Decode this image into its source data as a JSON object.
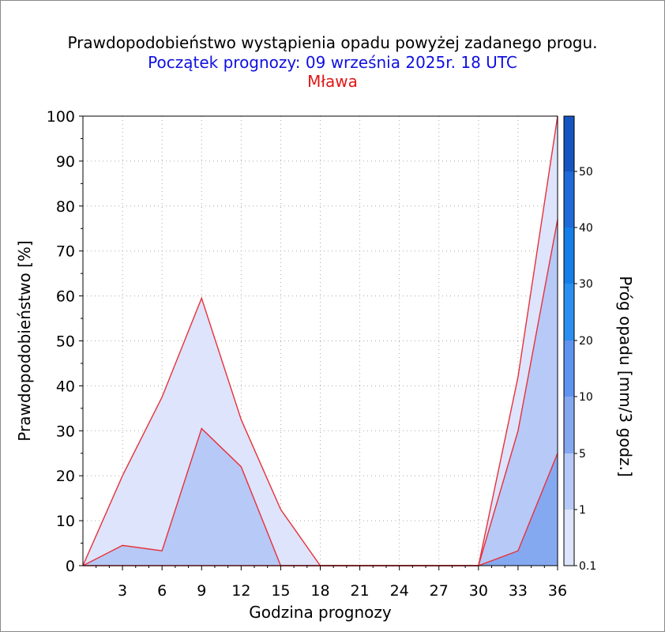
{
  "title": "Prawdopodobieństwo wystąpienia opadu powyżej zadanego progu.",
  "subtitle": "Początek prognozy: 09 września 2025r. 18 UTC",
  "location": "Mława",
  "colors": {
    "title": "#000000",
    "subtitle": "#1010e0",
    "location": "#e01818",
    "outline": "#e8303a",
    "level_0_1": "#dde4fb",
    "level_1": "#b7c9f6",
    "level_5": "#85a9f1",
    "level_10": "#5f93f0",
    "level_20": "#2a8ff0",
    "level_30": "#157ee8",
    "level_40": "#1f6ad8",
    "level_50": "#1654c0"
  },
  "chart_data": {
    "type": "area",
    "title": "Prawdopodobieństwo wystąpienia opadu powyżej zadanego progu.",
    "xlabel": "Godzina prognozy",
    "ylabel": "Prawdopodobieństwo [%]",
    "x": [
      0,
      3,
      6,
      9,
      12,
      15,
      18,
      21,
      24,
      27,
      30,
      33,
      36
    ],
    "x_ticks": [
      "3",
      "6",
      "9",
      "12",
      "15",
      "18",
      "21",
      "24",
      "27",
      "30",
      "33",
      "36"
    ],
    "y_ticks": [
      "0",
      "10",
      "20",
      "30",
      "40",
      "50",
      "60",
      "70",
      "80",
      "90",
      "100"
    ],
    "xlim": [
      0,
      36
    ],
    "ylim": [
      0,
      100
    ],
    "grid": true,
    "series": [
      {
        "threshold": "0.1",
        "values": [
          0,
          20,
          37.5,
          59.5,
          32.5,
          12.5,
          0,
          0,
          0,
          0,
          0,
          42,
          100
        ]
      },
      {
        "threshold": "1",
        "values": [
          0,
          4.5,
          3.3,
          30.5,
          22,
          0,
          0,
          0,
          0,
          0,
          0,
          30,
          77
        ]
      },
      {
        "threshold": "5",
        "values": [
          0,
          0,
          0,
          0,
          0,
          0,
          0,
          0,
          0,
          0,
          0,
          3.3,
          25
        ]
      }
    ],
    "colorbar": {
      "label": "Próg opadu [mm/3 godz.]",
      "levels": [
        "0.1",
        "1",
        "5",
        "10",
        "20",
        "30",
        "40",
        "50"
      ]
    }
  }
}
